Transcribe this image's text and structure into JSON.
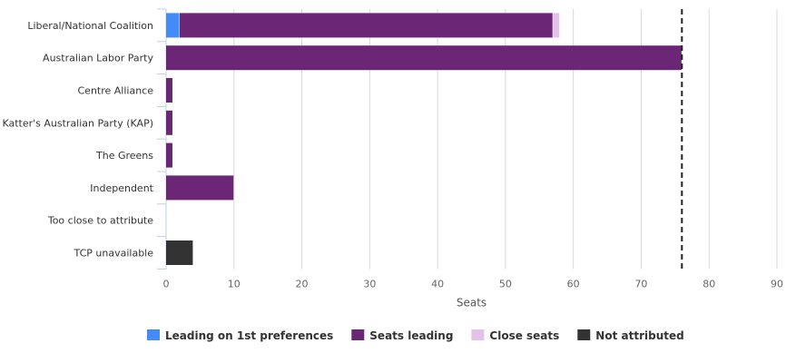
{
  "chart_data": {
    "type": "bar",
    "orientation": "horizontal",
    "stacked": true,
    "categories": [
      "Liberal/National Coalition",
      "Australian Labor Party",
      "Centre Alliance",
      "Katter's Australian Party (KAP)",
      "The Greens",
      "Independent",
      "Too close to attribute",
      "TCP unavailable"
    ],
    "series": [
      {
        "name": "Leading on 1st preferences",
        "color": "#428bf9",
        "values": [
          2,
          0,
          0,
          0,
          0,
          0,
          0,
          0
        ]
      },
      {
        "name": "Seats leading",
        "color": "#6b2776",
        "values": [
          55,
          76,
          1,
          1,
          1,
          10,
          0,
          0
        ]
      },
      {
        "name": "Close seats",
        "color": "#e4c1ea",
        "values": [
          1,
          0,
          0,
          0,
          0,
          0,
          0,
          0
        ]
      },
      {
        "name": "Not attributed",
        "color": "#333333",
        "values": [
          0,
          0,
          0,
          0,
          0,
          0,
          0,
          4
        ]
      }
    ],
    "xlabel": "Seats",
    "xlim": [
      0,
      90
    ],
    "xticks": [
      0,
      10,
      20,
      30,
      40,
      50,
      60,
      70,
      80,
      90
    ],
    "majority_line": 76,
    "grid": true,
    "legend": "bottom"
  }
}
